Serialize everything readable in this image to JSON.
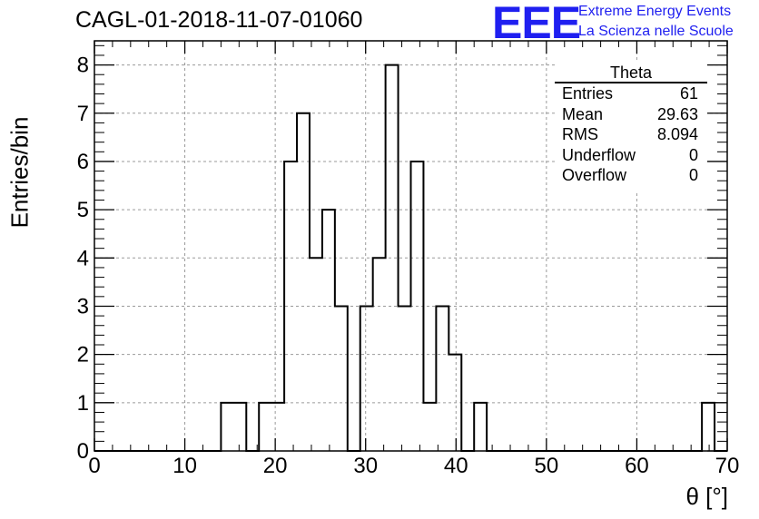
{
  "header": {
    "title": "CAGL-01-2018-11-07-01060",
    "logo_text": "EEE",
    "brand_line1": "Extreme Energy Events",
    "brand_line2": "La Scienza nelle Scuole"
  },
  "stats_box": {
    "title": "Theta",
    "rows": [
      {
        "label": "Entries",
        "value": "61"
      },
      {
        "label": "Mean",
        "value": "29.63"
      },
      {
        "label": "RMS",
        "value": "8.094"
      },
      {
        "label": "Underflow",
        "value": "0"
      },
      {
        "label": "Overflow",
        "value": "0"
      }
    ]
  },
  "colors": {
    "brand": "#1f1ff0",
    "line": "#000000",
    "grid": "#9a9a9a"
  },
  "chart_data": {
    "type": "bar",
    "histogram": true,
    "xlabel": "θ [°]",
    "ylabel": "Entries/bin",
    "xlim": [
      0,
      70
    ],
    "ylim": [
      0,
      8.5
    ],
    "grid": true,
    "bin_width": 1.4,
    "bin_edges": [
      0,
      1.4,
      2.8,
      4.2,
      5.6,
      7,
      8.4,
      9.8,
      11.2,
      12.6,
      14,
      15.4,
      16.8,
      18.2,
      19.6,
      21,
      22.4,
      23.8,
      25.2,
      26.6,
      28,
      29.4,
      30.8,
      32.2,
      33.6,
      35,
      36.4,
      37.8,
      39.2,
      40.6,
      42,
      43.4,
      44.8,
      46.2,
      47.6,
      49,
      50.4,
      51.8,
      53.2,
      54.6,
      56,
      57.4,
      58.8,
      60.2,
      61.6,
      63,
      64.4,
      65.8,
      67.2,
      68.6,
      70
    ],
    "counts": [
      0,
      0,
      0,
      0,
      0,
      0,
      0,
      0,
      0,
      0,
      1,
      1,
      0,
      1,
      1,
      6,
      7,
      4,
      5,
      3,
      0,
      3,
      4,
      8,
      3,
      6,
      1,
      3,
      2,
      0,
      1,
      0,
      0,
      0,
      0,
      0,
      0,
      0,
      0,
      0,
      0,
      0,
      0,
      0,
      0,
      0,
      0,
      0,
      1,
      0
    ],
    "x_ticks": [
      0,
      10,
      20,
      30,
      40,
      50,
      60,
      70
    ],
    "y_ticks": [
      0,
      1,
      2,
      3,
      4,
      5,
      6,
      7,
      8
    ]
  }
}
